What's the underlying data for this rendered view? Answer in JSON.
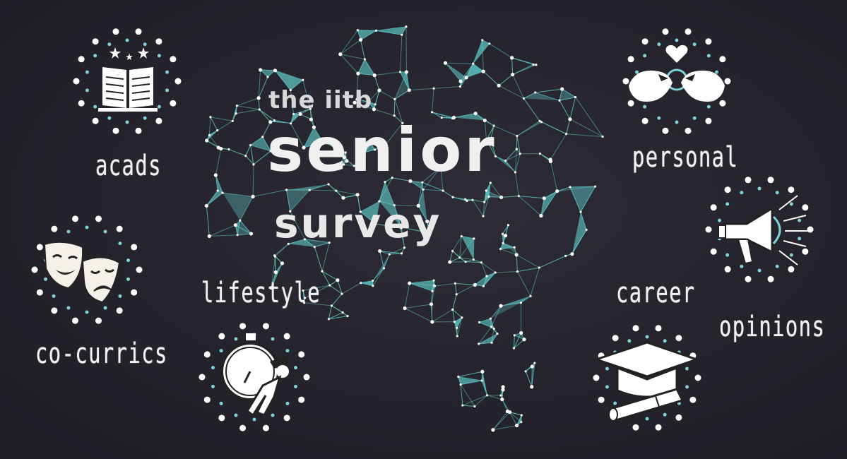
{
  "title": {
    "line1": "the iitb",
    "line2": "senior",
    "line3": "survey"
  },
  "categories": {
    "acads": "acads",
    "cocurrics": "co-currics",
    "lifestyle": "lifestyle",
    "personal": "personal",
    "career": "career",
    "opinions": "opinions"
  },
  "colors": {
    "background": "#25232c",
    "network": "#5ec6c6",
    "dots": "#ffffff",
    "accent": "#7fd3d6"
  },
  "icons": [
    "book-icon",
    "theatre-masks-icon",
    "stopwatch-exercise-icon",
    "lovebirds-icon",
    "megaphone-icon",
    "graduation-cap-icon"
  ]
}
